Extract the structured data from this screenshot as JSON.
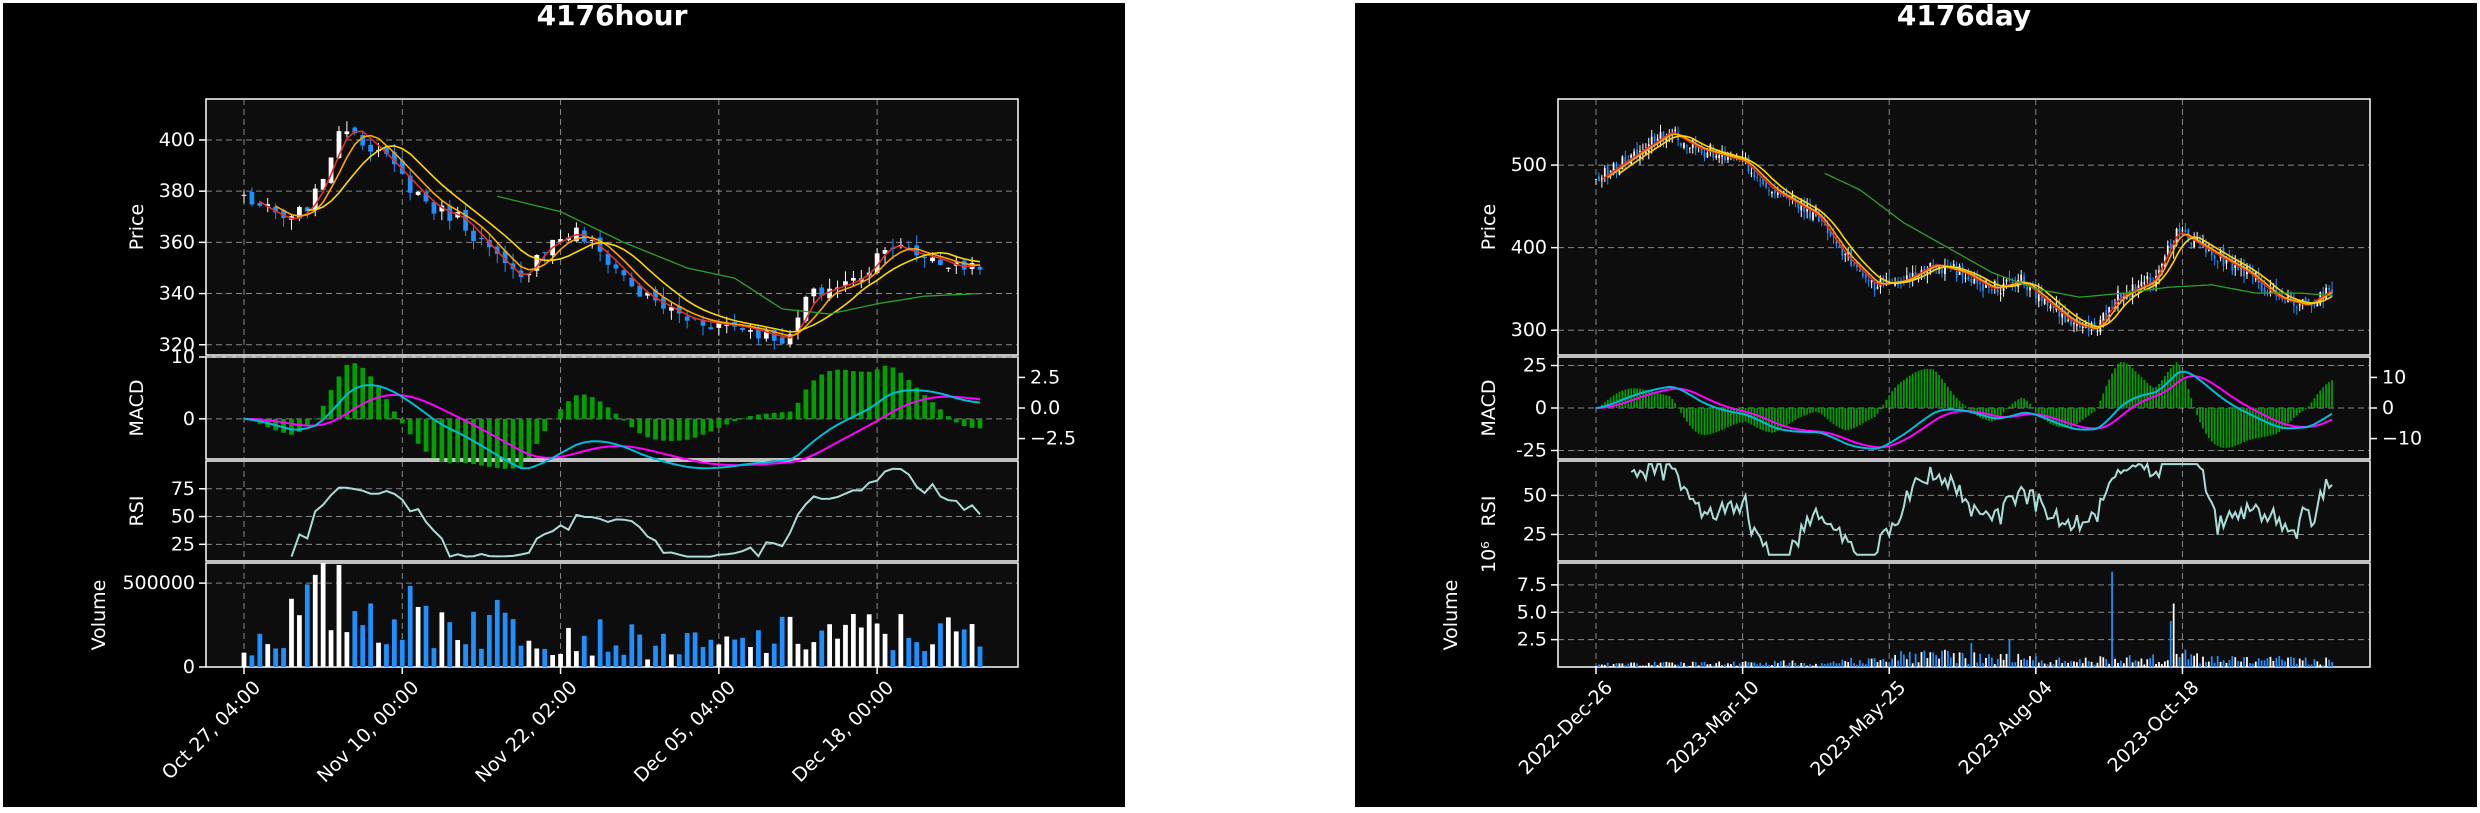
{
  "colors": {
    "background": "#000000",
    "panel": "#0d0d0d",
    "up": "#ffffff",
    "down": "#1e90ff",
    "ma_short": "#e03030",
    "ma_mid": "#ffa500",
    "ma_long": "#ffd700",
    "ma_vlong": "#2ca02c",
    "macd": "#00bcd4",
    "signal": "#ff00ff",
    "hist": "#00a000",
    "rsi": "#a8ddd8",
    "grid": "#bbbbbb"
  },
  "chart_data": [
    {
      "type": "candlestick",
      "title": "4176hour",
      "panels": {
        "price": {
          "ylabel": "Price",
          "yticks": [
            320,
            340,
            360,
            380,
            400
          ],
          "ylim": [
            316,
            416
          ]
        },
        "macd": {
          "ylabel": "MACD",
          "yticks_left": [
            0,
            10
          ],
          "yticks_right": [
            "2.5",
            "0.0",
            "−2.5"
          ],
          "ylim": [
            -6.5,
            10
          ]
        },
        "rsi": {
          "ylabel": "RSI",
          "yticks": [
            25,
            50,
            75
          ],
          "ylim": [
            10,
            100
          ]
        },
        "volume": {
          "ylabel": "Volume",
          "yticks": [
            0,
            500000
          ],
          "ytick_labels": [
            "0",
            "500000"
          ],
          "ylim": [
            0,
            620000
          ],
          "multiplier_label": ""
        }
      },
      "x_tick_labels": [
        "Oct 27, 04:00",
        "Nov 10, 00:00",
        "Nov 22, 02:00",
        "Dec 05, 04:00",
        "Dec 18, 00:00"
      ],
      "x_tick_index": [
        0,
        20,
        40,
        60,
        80
      ],
      "n": 94,
      "close_anchors": [
        [
          0,
          378
        ],
        [
          3,
          372
        ],
        [
          6,
          368
        ],
        [
          9,
          378
        ],
        [
          11,
          395
        ],
        [
          13,
          406
        ],
        [
          16,
          398
        ],
        [
          18,
          392
        ],
        [
          21,
          382
        ],
        [
          24,
          373
        ],
        [
          27,
          370
        ],
        [
          30,
          360
        ],
        [
          33,
          350
        ],
        [
          35,
          345
        ],
        [
          37,
          356
        ],
        [
          40,
          362
        ],
        [
          42,
          364
        ],
        [
          45,
          356
        ],
        [
          47,
          350
        ],
        [
          50,
          340
        ],
        [
          53,
          335
        ],
        [
          56,
          330
        ],
        [
          60,
          328
        ],
        [
          63,
          327
        ],
        [
          66,
          324
        ],
        [
          69,
          322
        ],
        [
          71,
          338
        ],
        [
          74,
          342
        ],
        [
          77,
          345
        ],
        [
          79,
          350
        ],
        [
          81,
          360
        ],
        [
          84,
          356
        ],
        [
          87,
          354
        ],
        [
          90,
          350
        ],
        [
          93,
          352
        ]
      ],
      "ma_long_anchors": [
        [
          32,
          378
        ],
        [
          40,
          372
        ],
        [
          48,
          360
        ],
        [
          56,
          350
        ],
        [
          62,
          346
        ],
        [
          68,
          334
        ],
        [
          74,
          332
        ],
        [
          80,
          336
        ],
        [
          86,
          339
        ],
        [
          93,
          340
        ]
      ],
      "volume_anchors": [
        [
          0,
          80000
        ],
        [
          10,
          300000
        ],
        [
          20,
          230000
        ],
        [
          35,
          200000
        ],
        [
          50,
          110000
        ],
        [
          60,
          90000
        ],
        [
          70,
          150000
        ],
        [
          80,
          160000
        ],
        [
          93,
          140000
        ]
      ],
      "rsi_start": 6
    },
    {
      "type": "candlestick",
      "title": "4176day",
      "panels": {
        "price": {
          "ylabel": "Price",
          "yticks": [
            300,
            400,
            500
          ],
          "ylim": [
            270,
            580
          ]
        },
        "macd": {
          "ylabel": "MACD",
          "yticks_left": [
            -25,
            0,
            25
          ],
          "yticks_right": [
            "10",
            "0",
            "−10"
          ],
          "ylim": [
            -30,
            30
          ]
        },
        "rsi": {
          "ylabel": "RSI",
          "yticks": [
            25,
            50
          ],
          "ylim": [
            8,
            72
          ]
        },
        "volume": {
          "ylabel": "Volume",
          "yticks": [
            2.5,
            5.0,
            7.5
          ],
          "ytick_labels": [
            "2.5",
            "5.0",
            "7.5"
          ],
          "ylim": [
            0,
            9.5
          ],
          "multiplier_label": "10⁶"
        }
      },
      "x_tick_labels": [
        "2022-Dec-26",
        "2023-Mar-10",
        "2023-May-25",
        "2023-Aug-04",
        "2023-Oct-18"
      ],
      "x_tick_index": [
        0,
        50,
        100,
        150,
        200
      ],
      "n": 252,
      "close_anchors": [
        [
          0,
          480
        ],
        [
          12,
          510
        ],
        [
          25,
          540
        ],
        [
          35,
          520
        ],
        [
          50,
          505
        ],
        [
          60,
          470
        ],
        [
          75,
          440
        ],
        [
          85,
          390
        ],
        [
          95,
          355
        ],
        [
          105,
          360
        ],
        [
          115,
          380
        ],
        [
          125,
          370
        ],
        [
          135,
          350
        ],
        [
          145,
          360
        ],
        [
          155,
          330
        ],
        [
          162,
          310
        ],
        [
          170,
          300
        ],
        [
          178,
          340
        ],
        [
          190,
          360
        ],
        [
          198,
          420
        ],
        [
          205,
          405
        ],
        [
          212,
          390
        ],
        [
          222,
          370
        ],
        [
          232,
          340
        ],
        [
          242,
          330
        ],
        [
          251,
          350
        ]
      ],
      "ma_long_anchors": [
        [
          78,
          490
        ],
        [
          90,
          470
        ],
        [
          105,
          430
        ],
        [
          120,
          400
        ],
        [
          135,
          370
        ],
        [
          150,
          350
        ],
        [
          165,
          340
        ],
        [
          180,
          345
        ],
        [
          195,
          352
        ],
        [
          210,
          355
        ],
        [
          225,
          345
        ],
        [
          240,
          345
        ],
        [
          251,
          342
        ]
      ],
      "volume_anchors": [
        [
          0,
          0.2
        ],
        [
          40,
          0.25
        ],
        [
          80,
          0.3
        ],
        [
          110,
          0.8
        ],
        [
          140,
          0.6
        ],
        [
          160,
          0.4
        ],
        [
          200,
          0.6
        ],
        [
          251,
          0.4
        ]
      ],
      "volume_spikes": [
        [
          128,
          2.2
        ],
        [
          141,
          2.5
        ],
        [
          148,
          1.0
        ],
        [
          176,
          8.7
        ],
        [
          196,
          4.2
        ],
        [
          197,
          5.8
        ],
        [
          201,
          1.6
        ]
      ],
      "rsi_start": 12
    }
  ]
}
